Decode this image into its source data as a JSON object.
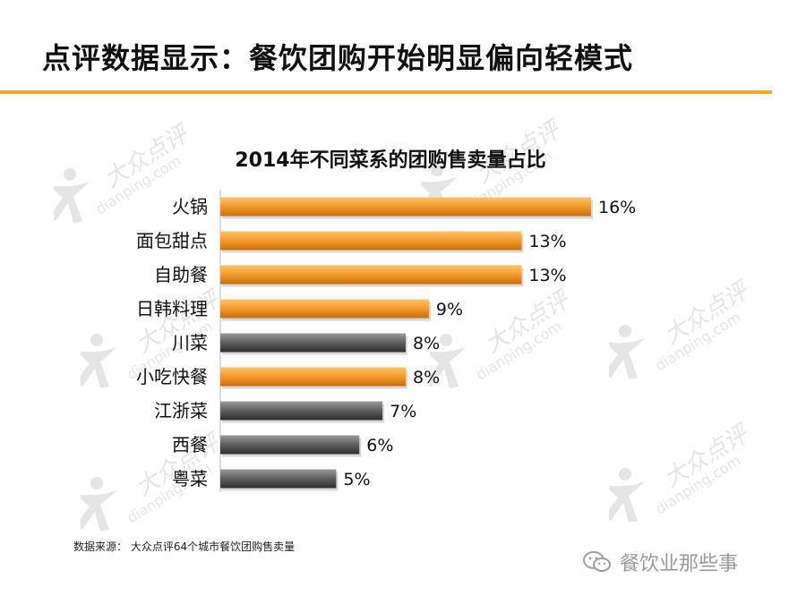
{
  "slide": {
    "title": "点评数据显示：餐饮团购开始明显偏向轻模式",
    "source": "数据来源： 大众点评64个城市餐饮团购售卖量",
    "account": "餐饮业那些事"
  },
  "watermark": {
    "brand_cn": "大众点评",
    "brand_url": "dianping.com"
  },
  "colors": {
    "accent": "#f5a623",
    "bar_orange": "#f39a2b",
    "bar_gray": "#5e5e5e"
  },
  "chart_data": {
    "type": "bar",
    "orientation": "horizontal",
    "title": "2014年不同菜系的团购售卖量占比",
    "categories": [
      "火锅",
      "面包甜点",
      "自助餐",
      "日韩料理",
      "川菜",
      "小吃快餐",
      "江浙菜",
      "西餐",
      "粤菜"
    ],
    "values": [
      16,
      13,
      13,
      9,
      8,
      8,
      7,
      6,
      5
    ],
    "labels": [
      "16%",
      "13%",
      "13%",
      "9%",
      "8%",
      "8%",
      "7%",
      "6%",
      "5%"
    ],
    "bar_colors": [
      "orange",
      "orange",
      "orange",
      "orange",
      "gray",
      "orange",
      "gray",
      "gray",
      "gray"
    ],
    "unit": "%",
    "xlim": [
      0,
      16
    ],
    "grid": false,
    "legend": "none"
  }
}
